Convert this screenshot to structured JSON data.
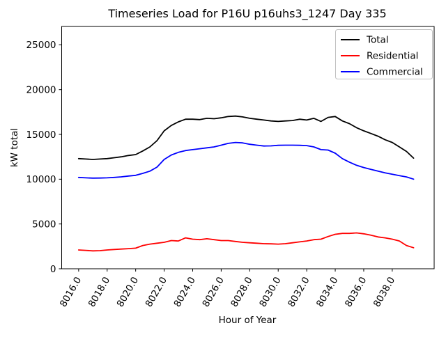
{
  "chart_data": {
    "type": "line",
    "title": "Timeseries Load for P16U p16uhs3_1247  Day 335",
    "xlabel": "Hour of Year",
    "ylabel": "kW total",
    "grid": false,
    "legend_position": "upper right",
    "xlim": [
      8014.81,
      8040.94
    ],
    "ylim": [
      0,
      27050
    ],
    "xtick_values": [
      8016,
      8018,
      8020,
      8022,
      8024,
      8026,
      8028,
      8030,
      8032,
      8034,
      8036,
      8038
    ],
    "xtick_labels": [
      "8016.0",
      "8018.0",
      "8020.0",
      "8022.0",
      "8024.0",
      "8026.0",
      "8028.0",
      "8030.0",
      "8032.0",
      "8034.0",
      "8036.0",
      "8038.0"
    ],
    "ytick_values": [
      0,
      5000,
      10000,
      15000,
      20000,
      25000
    ],
    "ytick_labels": [
      "0",
      "5000",
      "10000",
      "15000",
      "20000",
      "25000"
    ],
    "x": [
      8016.0,
      8016.5,
      8017.0,
      8017.5,
      8018.0,
      8018.5,
      8019.0,
      8019.5,
      8020.0,
      8020.5,
      8021.0,
      8021.5,
      8022.0,
      8022.5,
      8023.0,
      8023.5,
      8024.0,
      8024.5,
      8025.0,
      8025.5,
      8026.0,
      8026.5,
      8027.0,
      8027.5,
      8028.0,
      8028.5,
      8029.0,
      8029.5,
      8030.0,
      8030.5,
      8031.0,
      8031.5,
      8032.0,
      8032.5,
      8033.0,
      8033.5,
      8034.0,
      8034.5,
      8035.0,
      8035.5,
      8036.0,
      8036.5,
      8037.0,
      8037.5,
      8038.0,
      8038.5,
      8039.0,
      8039.5
    ],
    "series": [
      {
        "name": "Total",
        "color": "#000000",
        "values": [
          12300,
          12250,
          12200,
          12250,
          12300,
          12400,
          12500,
          12650,
          12750,
          13150,
          13600,
          14300,
          15400,
          16000,
          16400,
          16700,
          16700,
          16650,
          16800,
          16750,
          16850,
          17000,
          17050,
          16950,
          16800,
          16700,
          16600,
          16500,
          16450,
          16500,
          16550,
          16700,
          16600,
          16800,
          16450,
          16900,
          17000,
          16500,
          16200,
          15750,
          15400,
          15100,
          14800,
          14400,
          14100,
          13600,
          13100,
          12350
        ]
      },
      {
        "name": "Residential",
        "color": "#ff0000",
        "values": [
          2100,
          2050,
          2000,
          2020,
          2100,
          2150,
          2200,
          2250,
          2300,
          2600,
          2750,
          2850,
          2950,
          3150,
          3100,
          3450,
          3300,
          3250,
          3350,
          3250,
          3150,
          3150,
          3050,
          2950,
          2900,
          2850,
          2800,
          2780,
          2750,
          2800,
          2900,
          3000,
          3100,
          3250,
          3300,
          3600,
          3850,
          3950,
          3950,
          4000,
          3900,
          3750,
          3550,
          3450,
          3300,
          3100,
          2600,
          2350
        ]
      },
      {
        "name": "Commercial",
        "color": "#0000ff",
        "values": [
          10200,
          10150,
          10120,
          10130,
          10150,
          10200,
          10260,
          10350,
          10430,
          10650,
          10900,
          11350,
          12200,
          12700,
          13000,
          13200,
          13300,
          13400,
          13500,
          13600,
          13800,
          14000,
          14100,
          14050,
          13900,
          13800,
          13700,
          13720,
          13780,
          13800,
          13800,
          13780,
          13750,
          13600,
          13300,
          13250,
          12900,
          12300,
          11900,
          11550,
          11300,
          11100,
          10900,
          10700,
          10550,
          10400,
          10250,
          10000
        ]
      }
    ]
  }
}
